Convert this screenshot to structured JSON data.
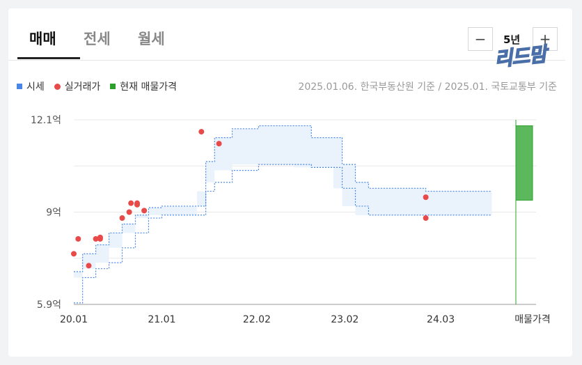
{
  "tabs": [
    {
      "label": "매매",
      "active": true
    },
    {
      "label": "전세",
      "active": false
    },
    {
      "label": "월세",
      "active": false
    }
  ],
  "controls": {
    "minus": "−",
    "range": "5년",
    "plus": "+"
  },
  "logo_text": "리드맘",
  "legend": [
    {
      "label": "시세",
      "color": "#4a86e8",
      "shape": "square"
    },
    {
      "label": "실거래가",
      "color": "#e84a4a",
      "shape": "circle"
    },
    {
      "label": "현재 매물가격",
      "color": "#2ca02c",
      "shape": "square"
    }
  ],
  "source": "2025.01.06. 한국부동산원 기준 / 2025.01. 국토교통부 기준",
  "chart_data": {
    "type": "area",
    "y_unit": "억",
    "ylim": [
      5.9,
      12.1
    ],
    "y_ticks": [
      {
        "v": 12.1,
        "label": "12.1억"
      },
      {
        "v": 9,
        "label": "9억"
      },
      {
        "v": 5.9,
        "label": "5.9억"
      }
    ],
    "x_ticks": [
      {
        "t": 2020.0,
        "label": "20.01"
      },
      {
        "t": 2021.0,
        "label": "21.01"
      },
      {
        "t": 2022.08,
        "label": "22.02"
      },
      {
        "t": 2023.08,
        "label": "23.02"
      },
      {
        "t": 2024.17,
        "label": "24.03"
      }
    ],
    "xlim": [
      2020.0,
      2025.0
    ],
    "extra_x_label": "매물가격",
    "series_range": {
      "name": "시세",
      "upper": [
        [
          2020.0,
          7.0
        ],
        [
          2020.1,
          7.6
        ],
        [
          2020.25,
          7.9
        ],
        [
          2020.4,
          8.3
        ],
        [
          2020.55,
          8.6
        ],
        [
          2020.7,
          8.9
        ],
        [
          2020.85,
          9.15
        ],
        [
          2021.0,
          9.2
        ],
        [
          2021.4,
          9.2
        ],
        [
          2021.5,
          10.7
        ],
        [
          2021.6,
          11.5
        ],
        [
          2021.8,
          11.8
        ],
        [
          2022.1,
          11.9
        ],
        [
          2022.5,
          11.9
        ],
        [
          2022.7,
          11.5
        ],
        [
          2022.95,
          11.5
        ],
        [
          2023.05,
          10.6
        ],
        [
          2023.2,
          10.0
        ],
        [
          2023.35,
          9.8
        ],
        [
          2023.8,
          9.8
        ],
        [
          2024.0,
          9.7
        ],
        [
          2024.75,
          9.7
        ]
      ],
      "lower": [
        [
          2020.0,
          5.95
        ],
        [
          2020.1,
          6.8
        ],
        [
          2020.25,
          7.1
        ],
        [
          2020.4,
          7.3
        ],
        [
          2020.55,
          7.8
        ],
        [
          2020.7,
          8.3
        ],
        [
          2020.85,
          8.8
        ],
        [
          2021.0,
          8.9
        ],
        [
          2021.4,
          8.9
        ],
        [
          2021.5,
          9.7
        ],
        [
          2021.6,
          10.0
        ],
        [
          2021.8,
          10.4
        ],
        [
          2022.1,
          10.6
        ],
        [
          2022.5,
          10.6
        ],
        [
          2022.7,
          10.5
        ],
        [
          2022.95,
          10.5
        ],
        [
          2023.05,
          9.8
        ],
        [
          2023.2,
          9.2
        ],
        [
          2023.35,
          8.9
        ],
        [
          2023.8,
          8.9
        ],
        [
          2024.0,
          8.9
        ],
        [
          2024.75,
          8.9
        ]
      ]
    },
    "series_points": {
      "name": "실거래가",
      "points": [
        [
          2020.0,
          7.6
        ],
        [
          2020.05,
          8.1
        ],
        [
          2020.17,
          7.2
        ],
        [
          2020.25,
          8.1
        ],
        [
          2020.3,
          8.15
        ],
        [
          2020.3,
          8.1
        ],
        [
          2020.55,
          8.8
        ],
        [
          2020.63,
          9.0
        ],
        [
          2020.65,
          9.3
        ],
        [
          2020.72,
          9.3
        ],
        [
          2020.72,
          9.25
        ],
        [
          2020.8,
          9.05
        ],
        [
          2021.45,
          11.7
        ],
        [
          2021.65,
          11.3
        ],
        [
          2024.0,
          9.5
        ],
        [
          2024.0,
          8.8
        ]
      ]
    },
    "listing_range": {
      "name": "현재 매물가격",
      "low": 9.4,
      "high": 11.9
    }
  }
}
